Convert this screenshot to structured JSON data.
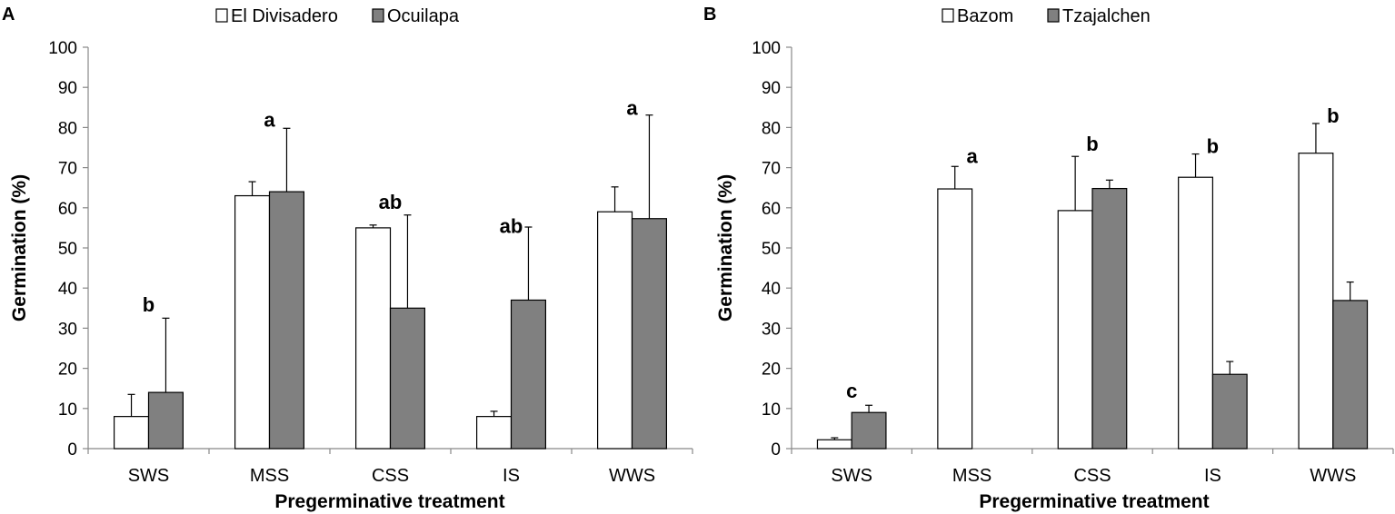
{
  "chart_data": [
    {
      "type": "bar",
      "panel_label": "A",
      "categories": [
        "SWS",
        "MSS",
        "CSS",
        "IS",
        "WWS"
      ],
      "series": [
        {
          "name": "El Divisadero",
          "color": "#ffffff",
          "values": [
            8,
            63,
            55,
            8,
            59
          ],
          "errors": [
            5.5,
            3.5,
            0.7,
            1.3,
            6.2
          ]
        },
        {
          "name": "Ocuilapa",
          "color": "#808080",
          "values": [
            14,
            64,
            35,
            37,
            57.3
          ],
          "errors": [
            18.5,
            15.8,
            23.2,
            18.2,
            25.8
          ]
        }
      ],
      "significance": [
        {
          "category": "SWS",
          "label": "b",
          "y": 36
        },
        {
          "category": "MSS",
          "label": "a",
          "y": 82
        },
        {
          "category": "CSS",
          "label": "ab",
          "y": 61.5
        },
        {
          "category": "IS",
          "label": "ab",
          "y": 55.5
        },
        {
          "category": "WWS",
          "label": "a",
          "y": 85
        }
      ],
      "xlabel": "Pregerminative treatment",
      "ylabel": "Germination (%)",
      "ylim": [
        0,
        100
      ],
      "yticks": [
        0,
        10,
        20,
        30,
        40,
        50,
        60,
        70,
        80,
        90,
        100
      ],
      "legend_position": "top-center"
    },
    {
      "type": "bar",
      "panel_label": "B",
      "categories": [
        "SWS",
        "MSS",
        "CSS",
        "IS",
        "WWS"
      ],
      "series": [
        {
          "name": "Bazom",
          "color": "#ffffff",
          "values": [
            2.2,
            64.7,
            59.3,
            67.6,
            73.6
          ],
          "errors": [
            0.5,
            5.6,
            13.5,
            5.8,
            7.4
          ]
        },
        {
          "name": "Tzajalchen",
          "color": "#808080",
          "values": [
            9,
            0,
            64.8,
            18.5,
            36.9
          ],
          "errors": [
            1.8,
            0,
            2.1,
            3.2,
            4.6
          ]
        }
      ],
      "significance": [
        {
          "category": "SWS",
          "label": "c",
          "y": 14.5
        },
        {
          "category": "MSS",
          "label": "a",
          "y": 73
        },
        {
          "category": "CSS",
          "label": "b",
          "y": 76
        },
        {
          "category": "IS",
          "label": "b",
          "y": 75.5
        },
        {
          "category": "WWS",
          "label": "b",
          "y": 83
        }
      ],
      "xlabel": "Pregerminative treatment",
      "ylabel": "Germination (%)",
      "ylim": [
        0,
        100
      ],
      "yticks": [
        0,
        10,
        20,
        30,
        40,
        50,
        60,
        70,
        80,
        90,
        100
      ],
      "legend_position": "top-center"
    }
  ]
}
